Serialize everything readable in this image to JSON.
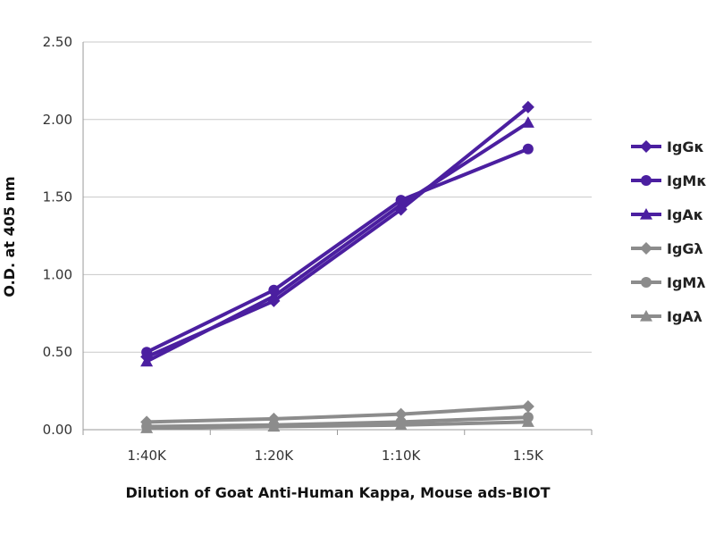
{
  "chart_data": {
    "type": "line",
    "categories": [
      "1:40K",
      "1:20K",
      "1:10K",
      "1:5K"
    ],
    "xlabel": "Dilution of Goat Anti-Human Kappa, Mouse ads-BIOT",
    "ylabel": "O.D. at 405 nm",
    "ylim": [
      0,
      2.5
    ],
    "yticks": [
      "0.00",
      "0.50",
      "1.00",
      "1.50",
      "2.00",
      "2.50"
    ],
    "grid": true,
    "legend_position": "right",
    "series": [
      {
        "name": "IgGκ",
        "values": [
          0.47,
          0.83,
          1.42,
          2.08
        ],
        "color": "#4b1fa0",
        "marker": "diamond"
      },
      {
        "name": "IgMκ",
        "values": [
          0.5,
          0.9,
          1.48,
          1.81
        ],
        "color": "#4b1fa0",
        "marker": "circle"
      },
      {
        "name": "IgAκ",
        "values": [
          0.44,
          0.86,
          1.45,
          1.98
        ],
        "color": "#4b1fa0",
        "marker": "triangle"
      },
      {
        "name": "IgGλ",
        "values": [
          0.05,
          0.07,
          0.1,
          0.15
        ],
        "color": "#8c8c8c",
        "marker": "diamond"
      },
      {
        "name": "IgMλ",
        "values": [
          0.02,
          0.03,
          0.05,
          0.08
        ],
        "color": "#8c8c8c",
        "marker": "circle"
      },
      {
        "name": "IgAλ",
        "values": [
          0.01,
          0.02,
          0.03,
          0.05
        ],
        "color": "#8c8c8c",
        "marker": "triangle"
      }
    ]
  }
}
